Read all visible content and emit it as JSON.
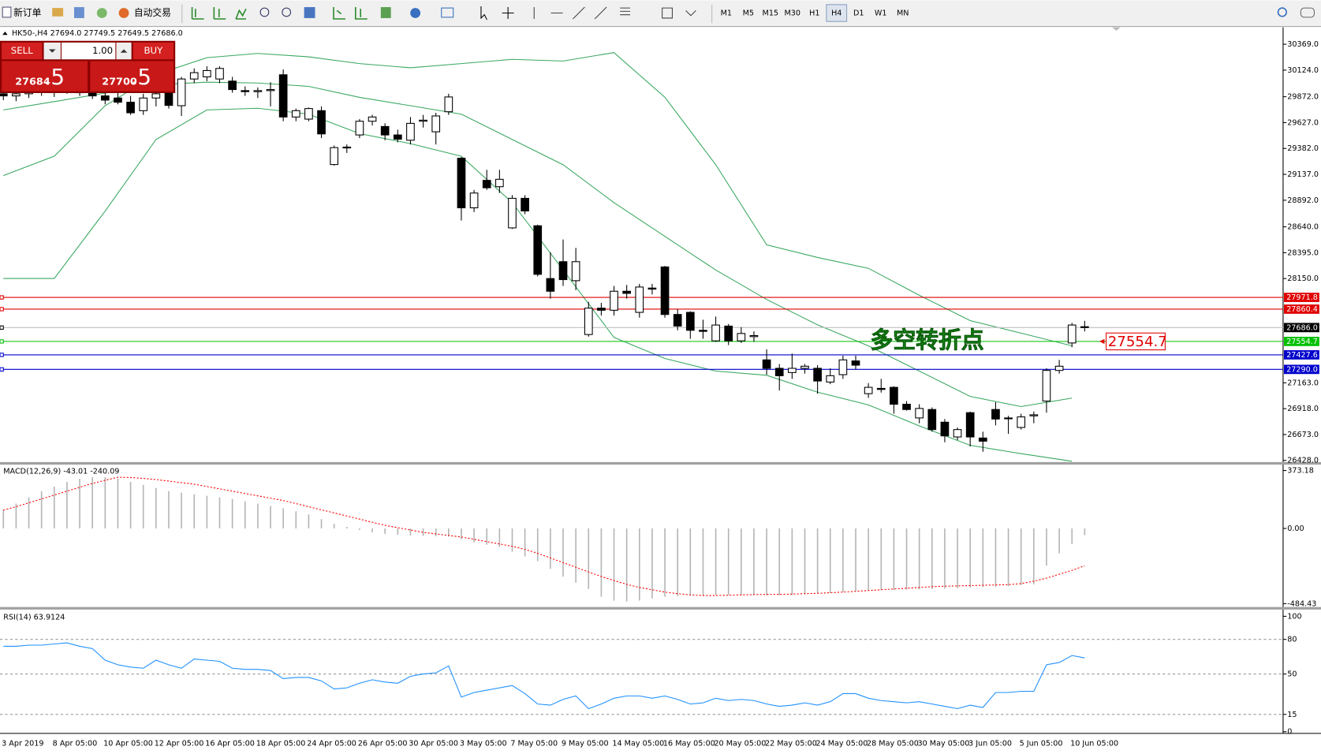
{
  "toolbar": {
    "buttons": [
      "新订单",
      "自动交易"
    ],
    "timeframes": [
      "M1",
      "M5",
      "M15",
      "M30",
      "H1",
      "H4",
      "D1",
      "W1",
      "MN"
    ],
    "active_timeframe": "H4"
  },
  "trade_panel": {
    "sell": "SELL",
    "lot": "1.00",
    "buy": "BUY",
    "bid_main": "27684",
    "bid_frac": ".5",
    "ask_main": "27700",
    "ask_frac": ".5"
  },
  "chart_data": [
    {
      "type": "candlestick",
      "title": "HK50-,H4 27694.0 27749.5 27649.5 27686.0",
      "categories": [
        "3 Apr 2019",
        null,
        null,
        null,
        "8 Apr 05:00",
        null,
        null,
        null,
        "10 Apr 05:00",
        null,
        null,
        null,
        "12 Apr 05:00",
        null,
        null,
        null,
        "16 Apr 05:00",
        null,
        null,
        null,
        "18 Apr 05:00",
        null,
        null,
        null,
        "24 Apr 05:00",
        null,
        null,
        null,
        "26 Apr 05:00",
        null,
        null,
        null,
        "30 Apr 05:00",
        null,
        null,
        null,
        "3 May 05:00",
        null,
        null,
        null,
        "7 May 05:00",
        null,
        null,
        null,
        "9 May 05:00",
        null,
        null,
        null,
        "14 May 05:00",
        null,
        null,
        null,
        "16 May 05:00",
        null,
        null,
        null,
        "20 May 05:00",
        null,
        null,
        null,
        "22 May 05:00",
        null,
        null,
        null,
        "24 May 05:00",
        null,
        null,
        null,
        "28 May 05:00",
        null,
        null,
        null,
        "30 May 05:00",
        null,
        null,
        null,
        "3 Jun 05:00",
        null,
        null,
        null,
        "5 Jun 05:00",
        null,
        null,
        null,
        "10 Jun 05:00",
        null
      ],
      "open": [
        29900,
        29880,
        29900,
        29940,
        29920,
        29960,
        29940,
        29910,
        29880,
        29860,
        29820,
        29740,
        29860,
        29986,
        29787,
        30040,
        30060,
        30040,
        30020,
        29930,
        29920,
        29930,
        30080,
        29680,
        29660,
        29740,
        29230,
        29390,
        29510,
        29640,
        29590,
        29510,
        29460,
        29640,
        29540,
        29730,
        29290,
        28820,
        29080,
        29020,
        28630,
        28910,
        28650,
        28150,
        28310,
        28130,
        27620,
        27870,
        27850,
        28030,
        27830,
        28060,
        28260,
        27810,
        27830,
        27660,
        27560,
        27700,
        27560,
        27600,
        27380,
        27300,
        27260,
        27300,
        27300,
        27170,
        27240,
        27370,
        27060,
        27110,
        27120,
        26960,
        26830,
        26910,
        26790,
        26650,
        26880,
        26640,
        26910,
        26830,
        26740,
        26850,
        26990,
        27280,
        27540,
        27694.0
      ],
      "high": [
        29960,
        29950,
        29980,
        30000,
        29990,
        30020,
        30000,
        29970,
        29930,
        29920,
        29880,
        29900,
        29920,
        30040,
        30060,
        30140,
        30160,
        30160,
        30060,
        29970,
        29960,
        30010,
        30130,
        29760,
        29770,
        29780,
        29410,
        29420,
        29660,
        29700,
        29620,
        29560,
        29680,
        29700,
        29720,
        29900,
        29300,
        28990,
        29180,
        29180,
        28940,
        28940,
        28660,
        28400,
        28520,
        28440,
        27930,
        27920,
        28080,
        28090,
        28100,
        28100,
        28270,
        27860,
        27840,
        27760,
        27790,
        27720,
        27690,
        27650,
        27480,
        27340,
        27440,
        27340,
        27330,
        27300,
        27420,
        27420,
        27160,
        27200,
        27130,
        26990,
        26960,
        26930,
        26820,
        26740,
        26890,
        26700,
        26980,
        26850,
        26870,
        26890,
        27300,
        27380,
        27730,
        27749.5
      ],
      "low": [
        29840,
        29830,
        29860,
        29880,
        29870,
        29900,
        29880,
        29850,
        29800,
        29800,
        29700,
        29700,
        29780,
        29760,
        29690,
        30000,
        30020,
        30000,
        29910,
        29880,
        29860,
        29780,
        29640,
        29640,
        29640,
        29480,
        29220,
        29340,
        29480,
        29600,
        29460,
        29440,
        29420,
        29580,
        29420,
        29700,
        28700,
        28780,
        28990,
        28960,
        28620,
        28760,
        28170,
        27960,
        28080,
        28040,
        27600,
        27800,
        27800,
        27960,
        27780,
        28000,
        27780,
        27660,
        27580,
        27580,
        27550,
        27520,
        27540,
        27550,
        27240,
        27090,
        27200,
        27250,
        27060,
        27150,
        27200,
        27290,
        27020,
        27070,
        26870,
        26900,
        26780,
        26700,
        26600,
        26620,
        26560,
        26510,
        26760,
        26680,
        26720,
        26780,
        26880,
        27250,
        27500,
        27649.5
      ],
      "close": [
        29880,
        29900,
        29940,
        29920,
        29960,
        29940,
        29910,
        29880,
        29840,
        29820,
        29720,
        29860,
        29900,
        29790,
        30040,
        30100,
        30120,
        30140,
        29940,
        29920,
        29930,
        29940,
        29680,
        29740,
        29760,
        29520,
        29390,
        29395,
        29640,
        29680,
        29510,
        29470,
        29620,
        29650,
        29690,
        29870,
        28820,
        28960,
        29010,
        29090,
        28910,
        28790,
        28190,
        28030,
        28140,
        28310,
        27870,
        27850,
        28030,
        28010,
        28070,
        28050,
        27810,
        27700,
        27660,
        27650,
        27710,
        27560,
        27630,
        27610,
        27300,
        27230,
        27300,
        27320,
        27180,
        27230,
        27380,
        27330,
        27120,
        27100,
        26960,
        26910,
        26920,
        26720,
        26660,
        26720,
        26650,
        26610,
        26820,
        26830,
        26840,
        26860,
        27280,
        27320,
        27710,
        27686.0
      ],
      "up_color": "#ffffff",
      "down_color": "#000000",
      "bands": [
        {
          "color": "#3aa860",
          "x": [
            0,
            4,
            8,
            12,
            16,
            20,
            24,
            28,
            32,
            36,
            40,
            44,
            48,
            52,
            56,
            60,
            64,
            68,
            72,
            76,
            80,
            84
          ],
          "values": [
            29125,
            29309,
            29787,
            30082,
            30242,
            30282,
            30250,
            30186,
            30146,
            30186,
            30226,
            30210,
            30290,
            29867,
            29228,
            28470,
            28350,
            28247,
            27992,
            27752,
            27633,
            27513
          ]
        },
        {
          "color": "#3aa860",
          "x": [
            0,
            4,
            8,
            12,
            16,
            20,
            24,
            28,
            32,
            36,
            40,
            44,
            48,
            52,
            56,
            60,
            64,
            68,
            72,
            76,
            80,
            84
          ],
          "values": [
            29747,
            29826,
            29906,
            29986,
            30010,
            30002,
            29970,
            29866,
            29787,
            29707,
            29467,
            29228,
            28869,
            28550,
            28231,
            27952,
            27712,
            27513,
            27274,
            27034,
            26938,
            27018
          ]
        },
        {
          "color": "#3aa860",
          "x": [
            0,
            4,
            8,
            12,
            16,
            20,
            24,
            28,
            32,
            36,
            40,
            44,
            48,
            52,
            56,
            60,
            64,
            68,
            72,
            76,
            80,
            84
          ],
          "values": [
            28151,
            28151,
            28789,
            29467,
            29747,
            29763,
            29707,
            29523,
            29428,
            29308,
            28869,
            28231,
            27593,
            27393,
            27274,
            27234,
            27074,
            26954,
            26755,
            26571,
            26492,
            26420
          ]
        }
      ],
      "levels": [
        {
          "value": 27971.8,
          "label": "27971.8",
          "color": "#e00000"
        },
        {
          "value": 27860.4,
          "label": "27860.4",
          "color": "#e00000"
        },
        {
          "value": 27686.0,
          "label": "27686.0",
          "color": "#000000"
        },
        {
          "value": 27554.7,
          "label": "27554.7",
          "color": "#00c000"
        },
        {
          "value": 27427.6,
          "label": "27427.6",
          "color": "#0000cc"
        },
        {
          "value": 27290.0,
          "label": "27290.0",
          "color": "#0000cc"
        }
      ],
      "annotation": "多空转折点",
      "price_tag": {
        "value": 27554.7,
        "label": "27554.7"
      },
      "ylim": [
        26412,
        30529
      ],
      "yticks": [
        {
          "value": 30369,
          "label": "30369.0"
        },
        {
          "value": 30124,
          "label": "30124.0"
        },
        {
          "value": 29872,
          "label": "29872.0"
        },
        {
          "value": 29627,
          "label": "29627.0"
        },
        {
          "value": 29382,
          "label": "29382.0"
        },
        {
          "value": 29137,
          "label": "29137.0"
        },
        {
          "value": 28892,
          "label": "28892.0"
        },
        {
          "value": 28640,
          "label": "28640.0"
        },
        {
          "value": 28395,
          "label": "28395.0"
        },
        {
          "value": 28150,
          "label": "28150.0"
        },
        {
          "value": 27163,
          "label": "27163.0"
        },
        {
          "value": 26918,
          "label": "26918.0"
        },
        {
          "value": 26673,
          "label": "26673.0"
        },
        {
          "value": 26428,
          "label": "26428.0"
        }
      ]
    },
    {
      "type": "macd",
      "title": "MACD(12,26,9) -43.01 -240.09",
      "series": [
        {
          "kind": "bar",
          "color": "#b4b4b4",
          "values": [
            120,
            160,
            200,
            240,
            270,
            300,
            320,
            330,
            330,
            320,
            300,
            280,
            260,
            240,
            230,
            220,
            210,
            200,
            190,
            175,
            160,
            145,
            130,
            110,
            90,
            60,
            30,
            10,
            -10,
            -25,
            -35,
            -40,
            -45,
            -48,
            -50,
            -52,
            -70,
            -90,
            -105,
            -120,
            -150,
            -180,
            -210,
            -260,
            -310,
            -350,
            -390,
            -440,
            -465,
            -470,
            -465,
            -450,
            -440,
            -435,
            -432,
            -430,
            -430,
            -430,
            -430,
            -430,
            -430,
            -430,
            -428,
            -425,
            -420,
            -415,
            -410,
            -405,
            -400,
            -398,
            -396,
            -394,
            -392,
            -390,
            -388,
            -385,
            -380,
            -378,
            -375,
            -372,
            -365,
            -360,
            -240,
            -160,
            -100,
            -43.01
          ]
        },
        {
          "kind": "line",
          "color": "#ff0000",
          "values": [
            118,
            140,
            165,
            190,
            215,
            240,
            265,
            290,
            310,
            330,
            328,
            322,
            315,
            305,
            295,
            285,
            270,
            255,
            240,
            225,
            210,
            195,
            180,
            160,
            140,
            120,
            100,
            80,
            60,
            40,
            20,
            5,
            -10,
            -25,
            -35,
            -45,
            -55,
            -70,
            -85,
            -100,
            -115,
            -135,
            -160,
            -190,
            -220,
            -250,
            -280,
            -310,
            -335,
            -360,
            -380,
            -395,
            -410,
            -420,
            -428,
            -432,
            -432,
            -430,
            -428,
            -426,
            -425,
            -424,
            -423,
            -420,
            -418,
            -414,
            -410,
            -405,
            -400,
            -395,
            -390,
            -385,
            -380,
            -375,
            -372,
            -370,
            -368,
            -366,
            -364,
            -362,
            -355,
            -340,
            -320,
            -295,
            -270,
            -240.09
          ]
        }
      ],
      "ylim": [
        -506,
        411
      ],
      "yticks": [
        373.18,
        {
          "value": 0,
          "label": "0.00"
        },
        -484.43
      ]
    },
    {
      "type": "line",
      "title": "RSI(14) 63.9124",
      "color": "#1e90ff",
      "values": [
        74,
        74,
        75,
        75,
        76,
        77,
        74,
        72,
        62,
        58,
        56,
        55,
        62,
        58,
        55,
        63,
        62,
        61,
        55,
        54,
        54,
        53,
        46,
        47,
        47,
        44,
        37,
        38,
        42,
        45,
        43,
        42,
        48,
        50,
        51,
        57,
        30,
        34,
        36,
        38,
        40,
        33,
        24,
        23,
        28,
        31,
        20,
        24,
        29,
        31,
        31,
        29,
        31,
        28,
        24,
        25,
        29,
        27,
        28,
        27,
        24,
        22,
        23,
        25,
        23,
        26,
        33,
        33,
        29,
        27,
        26,
        25,
        26,
        24,
        22,
        20,
        23,
        21,
        34,
        34,
        35,
        35,
        58,
        60,
        66,
        63.9124
      ],
      "ylim": [
        0,
        104.4
      ],
      "yticks": [
        100,
        80,
        50,
        15,
        0
      ]
    }
  ]
}
